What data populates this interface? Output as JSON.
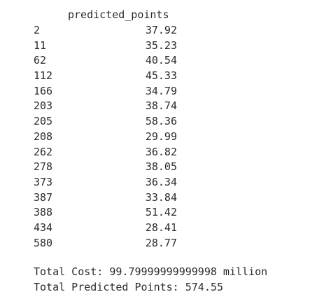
{
  "table": {
    "column_header": "predicted_points",
    "rows": [
      {
        "index": "2",
        "predicted_points": "37.92"
      },
      {
        "index": "11",
        "predicted_points": "35.23"
      },
      {
        "index": "62",
        "predicted_points": "40.54"
      },
      {
        "index": "112",
        "predicted_points": "45.33"
      },
      {
        "index": "166",
        "predicted_points": "34.79"
      },
      {
        "index": "203",
        "predicted_points": "38.74"
      },
      {
        "index": "205",
        "predicted_points": "58.36"
      },
      {
        "index": "208",
        "predicted_points": "29.99"
      },
      {
        "index": "262",
        "predicted_points": "36.82"
      },
      {
        "index": "278",
        "predicted_points": "38.05"
      },
      {
        "index": "373",
        "predicted_points": "36.34"
      },
      {
        "index": "387",
        "predicted_points": "33.84"
      },
      {
        "index": "388",
        "predicted_points": "51.42"
      },
      {
        "index": "434",
        "predicted_points": "28.41"
      },
      {
        "index": "580",
        "predicted_points": "28.77"
      }
    ]
  },
  "summary": {
    "total_cost": "Total Cost: 99.79999999999998 million",
    "total_predicted_points": "Total Predicted Points: 574.55"
  }
}
